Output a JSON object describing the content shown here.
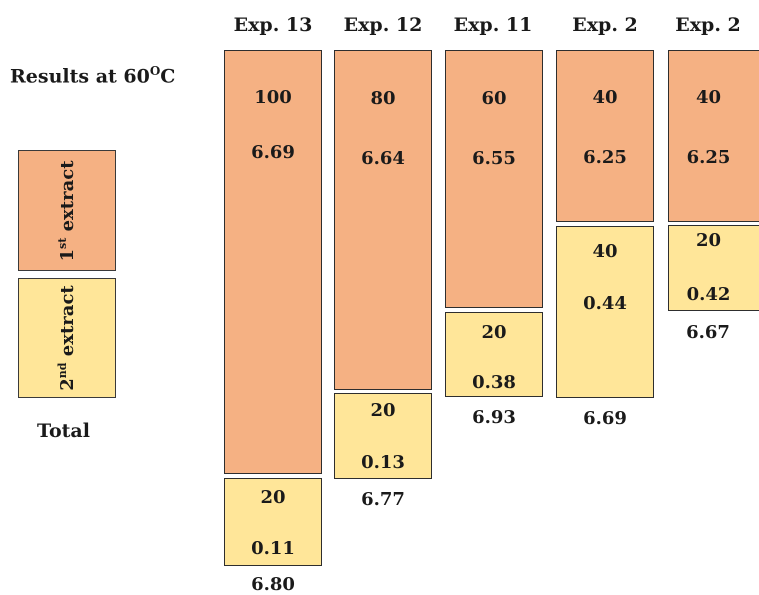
{
  "title": {
    "text": "Results at 60",
    "degree": "O",
    "unit": "C"
  },
  "colors": {
    "first": "#F5B183",
    "second": "#FFE699",
    "border": "#2e2e2e"
  },
  "legend": {
    "first": {
      "ordinal": "1",
      "suffix": "st",
      "word": "extract"
    },
    "second": {
      "ordinal": "2",
      "suffix": "nd",
      "word": "extract"
    },
    "total": "Total"
  },
  "experiments": [
    {
      "name": "Exp. 13",
      "first_amount": "100",
      "first_yield": "6.69",
      "second_amount": "20",
      "second_yield": "0.11",
      "total": "6.80"
    },
    {
      "name": "Exp. 12",
      "first_amount": "80",
      "first_yield": "6.64",
      "second_amount": "20",
      "second_yield": "0.13",
      "total": "6.77"
    },
    {
      "name": "Exp. 11",
      "first_amount": "60",
      "first_yield": "6.55",
      "second_amount": "20",
      "second_yield": "0.38",
      "total": "6.93"
    },
    {
      "name": "Exp. 2",
      "first_amount": "40",
      "first_yield": "6.25",
      "second_amount": "40",
      "second_yield": "0.44",
      "total": "6.69"
    },
    {
      "name": "Exp. 2",
      "first_amount": "40",
      "first_yield": "6.25",
      "second_amount": "20",
      "second_yield": "0.42",
      "total": "6.67"
    }
  ]
}
